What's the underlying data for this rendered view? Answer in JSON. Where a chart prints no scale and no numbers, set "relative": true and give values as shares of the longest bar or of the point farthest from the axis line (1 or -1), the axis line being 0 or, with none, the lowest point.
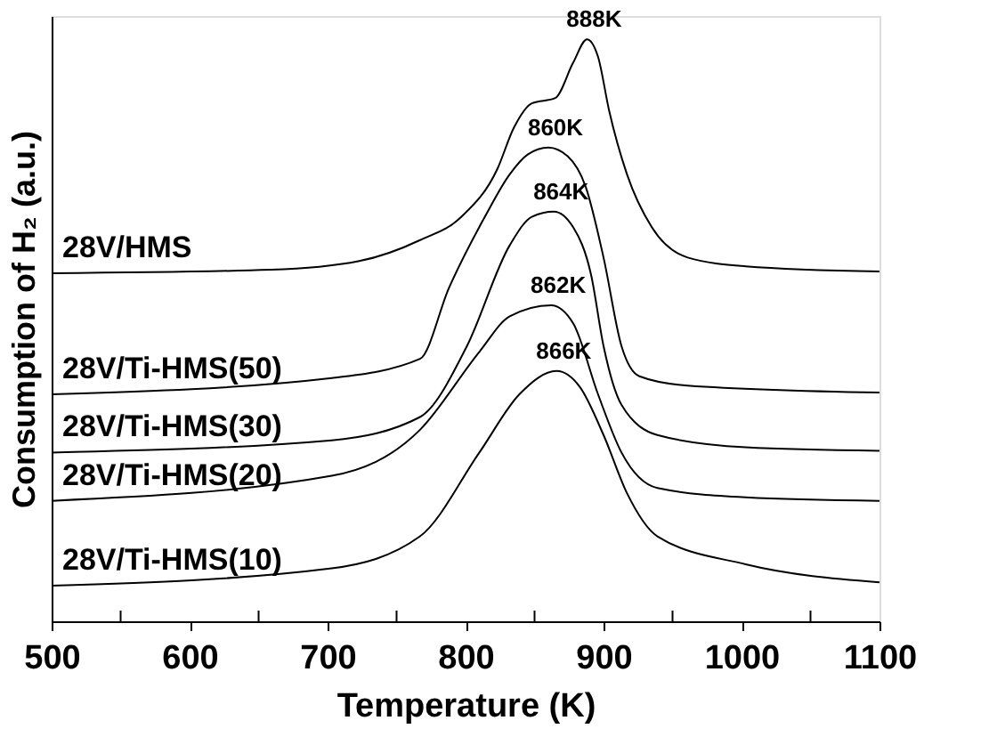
{
  "chart_data": {
    "type": "line",
    "relative": true,
    "xlabel": "Temperature (K)",
    "ylabel": "Consumption of H₂ (a.u.)",
    "xlim": [
      500,
      1100
    ],
    "xticks": [
      500,
      {
        "value": 550,
        "label": null
      },
      600,
      {
        "value": 650,
        "label": null
      },
      700,
      {
        "value": 750,
        "label": null
      },
      800,
      {
        "value": 850,
        "label": null
      },
      900,
      {
        "value": 950,
        "label": null
      },
      1000,
      {
        "value": 1050,
        "label": null
      },
      1100
    ],
    "grid": false,
    "marker": "none",
    "line_style": "solid",
    "series": [
      {
        "name": "28V/HMS",
        "color": "#000000",
        "x": [
          500,
          659,
          723,
          767,
          797,
          823,
          835,
          848,
          865,
          878,
          888,
          896,
          904,
          917,
          935,
          961,
          1003,
          1100
        ],
        "values": [
          0.598,
          0.604,
          0.619,
          0.655,
          0.695,
          0.777,
          0.848,
          0.89,
          0.899,
          0.96,
          1.0,
          0.97,
          0.878,
          0.768,
          0.677,
          0.625,
          0.61,
          0.601
        ]
      },
      {
        "name": "28V/Ti-HMS(50)",
        "color": "#000000",
        "x": [
          500,
          703,
          767,
          788,
          814,
          832,
          845,
          860,
          874,
          887,
          900,
          913,
          926,
          961,
          1100
        ],
        "values": [
          0.39,
          0.418,
          0.451,
          0.573,
          0.695,
          0.768,
          0.802,
          0.814,
          0.799,
          0.747,
          0.625,
          0.473,
          0.421,
          0.405,
          0.393
        ]
      },
      {
        "name": "28V/Ti-HMS(30)",
        "color": "#000000",
        "x": [
          500,
          703,
          767,
          801,
          832,
          848,
          864,
          878,
          891,
          900,
          913,
          939,
          1003,
          1100
        ],
        "values": [
          0.29,
          0.311,
          0.351,
          0.473,
          0.646,
          0.695,
          0.704,
          0.677,
          0.595,
          0.473,
          0.372,
          0.32,
          0.299,
          0.293
        ]
      },
      {
        "name": "28V/Ti-HMS(20)",
        "color": "#000000",
        "x": [
          500,
          703,
          767,
          810,
          832,
          862,
          878,
          896,
          913,
          939,
          1003,
          1100
        ],
        "values": [
          0.207,
          0.25,
          0.329,
          0.463,
          0.524,
          0.543,
          0.512,
          0.39,
          0.29,
          0.229,
          0.213,
          0.207
        ]
      },
      {
        "name": "28V/Ti-HMS(10)",
        "color": "#000000",
        "x": [
          500,
          703,
          767,
          810,
          839,
          866,
          883,
          900,
          917,
          939,
          1003,
          1100
        ],
        "values": [
          0.061,
          0.091,
          0.146,
          0.29,
          0.39,
          0.43,
          0.402,
          0.32,
          0.22,
          0.146,
          0.098,
          0.067
        ]
      }
    ],
    "annotations": [
      {
        "text": "888K",
        "x": 888,
        "y": 1.0
      },
      {
        "text": "860K",
        "x": 860,
        "y": 0.814
      },
      {
        "text": "864K",
        "x": 864,
        "y": 0.704
      },
      {
        "text": "862K",
        "x": 862,
        "y": 0.543
      },
      {
        "text": "866K",
        "x": 866,
        "y": 0.43
      }
    ]
  }
}
